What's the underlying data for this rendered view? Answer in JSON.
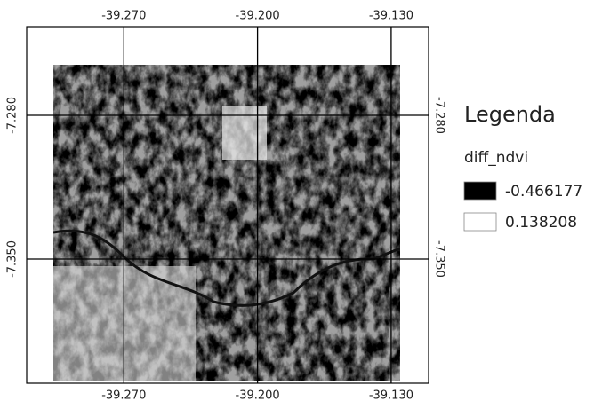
{
  "map_data": {
    "xlim": [
      -39.3209,
      -39.1104
    ],
    "ylim": [
      -7.4105,
      -7.2368
    ],
    "xticks": [
      {
        "value": -39.27,
        "label": "-39.270"
      },
      {
        "value": -39.2,
        "label": "-39.200"
      },
      {
        "value": -39.13,
        "label": "-39.130"
      }
    ],
    "yticks": [
      {
        "value": -7.28,
        "label": "-7.280"
      },
      {
        "value": -7.35,
        "label": "-7.350"
      }
    ],
    "grid": true,
    "legend": {
      "title": "Legenda",
      "layer": "diff_ndvi",
      "entries": [
        {
          "value": -0.466177,
          "color": "#000000"
        },
        {
          "value": 0.138208,
          "color": "#ffffff"
        }
      ]
    }
  }
}
